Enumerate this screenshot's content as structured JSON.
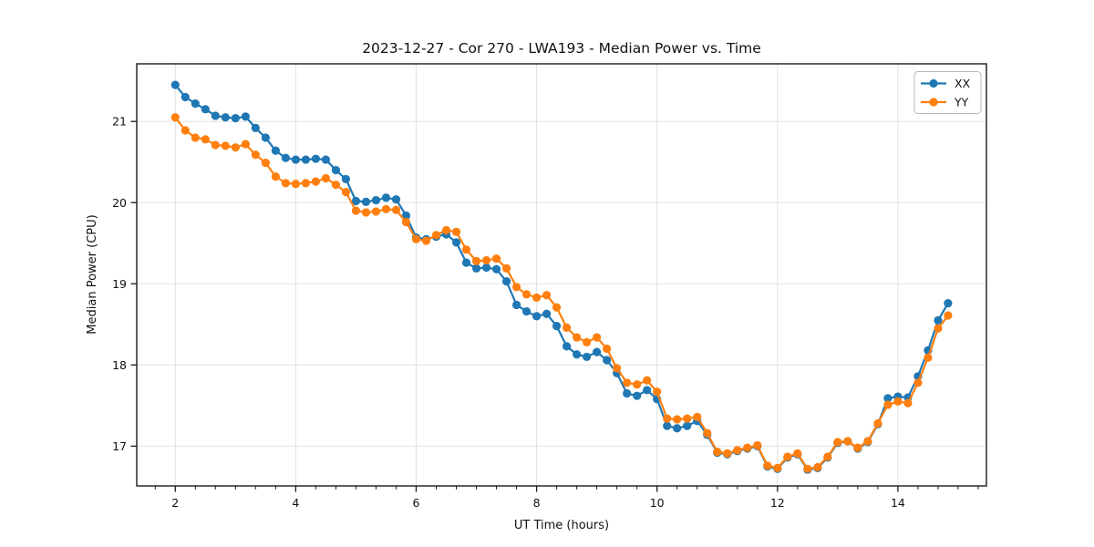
{
  "chart_data": {
    "type": "line",
    "title": "2023-12-27 - Cor 270 - LWA193 - Median Power vs. Time",
    "xlabel": "UT Time (hours)",
    "ylabel": "Median Power (CPU)",
    "xlim": [
      1.36,
      15.47
    ],
    "ylim": [
      16.51,
      21.71
    ],
    "x_major_ticks": [
      2,
      4,
      6,
      8,
      10,
      12,
      14
    ],
    "x_minor_tick_interval": 0.3333,
    "y_major_ticks": [
      17,
      18,
      19,
      20,
      21
    ],
    "grid": "major",
    "legend": {
      "position": "upper right",
      "entries": [
        "XX",
        "YY"
      ]
    },
    "x": [
      2.0,
      2.167,
      2.333,
      2.5,
      2.667,
      2.833,
      3.0,
      3.167,
      3.333,
      3.5,
      3.667,
      3.833,
      4.0,
      4.167,
      4.333,
      4.5,
      4.667,
      4.833,
      5.0,
      5.167,
      5.333,
      5.5,
      5.667,
      5.833,
      6.0,
      6.167,
      6.333,
      6.5,
      6.667,
      6.833,
      7.0,
      7.167,
      7.333,
      7.5,
      7.667,
      7.833,
      8.0,
      8.167,
      8.333,
      8.5,
      8.667,
      8.833,
      9.0,
      9.167,
      9.333,
      9.5,
      9.667,
      9.833,
      10.0,
      10.167,
      10.333,
      10.5,
      10.667,
      10.833,
      11.0,
      11.167,
      11.333,
      11.5,
      11.667,
      11.833,
      12.0,
      12.167,
      12.333,
      12.5,
      12.667,
      12.833,
      13.0,
      13.167,
      13.333,
      13.5,
      13.667,
      13.833,
      14.0,
      14.167,
      14.333,
      14.5,
      14.667,
      14.833
    ],
    "series": [
      {
        "name": "XX",
        "color": "#1f77b4",
        "marker": "circle",
        "values": [
          21.45,
          21.3,
          21.22,
          21.15,
          21.07,
          21.05,
          21.04,
          21.06,
          20.92,
          20.8,
          20.64,
          20.55,
          20.53,
          20.53,
          20.54,
          20.53,
          20.4,
          20.29,
          20.02,
          20.01,
          20.03,
          20.06,
          20.04,
          19.84,
          19.57,
          19.55,
          19.58,
          19.61,
          19.51,
          19.26,
          19.19,
          19.2,
          19.18,
          19.03,
          18.74,
          18.66,
          18.6,
          18.63,
          18.48,
          18.23,
          18.13,
          18.1,
          18.16,
          18.06,
          17.9,
          17.65,
          17.62,
          17.69,
          17.58,
          17.25,
          17.22,
          17.25,
          17.31,
          17.14,
          16.92,
          16.9,
          16.94,
          16.97,
          17.0,
          16.75,
          16.72,
          16.86,
          16.9,
          16.71,
          16.73,
          16.86,
          17.04,
          17.06,
          16.97,
          17.05,
          17.27,
          17.59,
          17.61,
          17.6,
          17.86,
          18.18,
          18.55,
          18.76
        ]
      },
      {
        "name": "YY",
        "color": "#ff7f0e",
        "marker": "circle",
        "values": [
          21.05,
          20.89,
          20.8,
          20.78,
          20.71,
          20.7,
          20.68,
          20.72,
          20.59,
          20.49,
          20.32,
          20.24,
          20.23,
          20.24,
          20.26,
          20.3,
          20.22,
          20.13,
          19.9,
          19.88,
          19.89,
          19.92,
          19.91,
          19.76,
          19.55,
          19.53,
          19.6,
          19.66,
          19.64,
          19.42,
          19.28,
          19.29,
          19.31,
          19.19,
          18.96,
          18.87,
          18.83,
          18.86,
          18.71,
          18.46,
          18.34,
          18.28,
          18.34,
          18.2,
          17.96,
          17.78,
          17.76,
          17.81,
          17.67,
          17.34,
          17.33,
          17.34,
          17.36,
          17.16,
          16.93,
          16.91,
          16.95,
          16.98,
          17.01,
          16.76,
          16.73,
          16.87,
          16.91,
          16.72,
          16.74,
          16.87,
          17.05,
          17.06,
          16.98,
          17.06,
          17.28,
          17.51,
          17.55,
          17.53,
          17.78,
          18.09,
          18.45,
          18.61
        ]
      }
    ]
  },
  "colors": {
    "background": "#ffffff",
    "grid": "#e0e0e0",
    "spine": "#1a1a1a",
    "text": "#111111",
    "legend_border": "#b8b8b8",
    "series_xx": "#1f77b4",
    "series_yy": "#ff7f0e"
  }
}
